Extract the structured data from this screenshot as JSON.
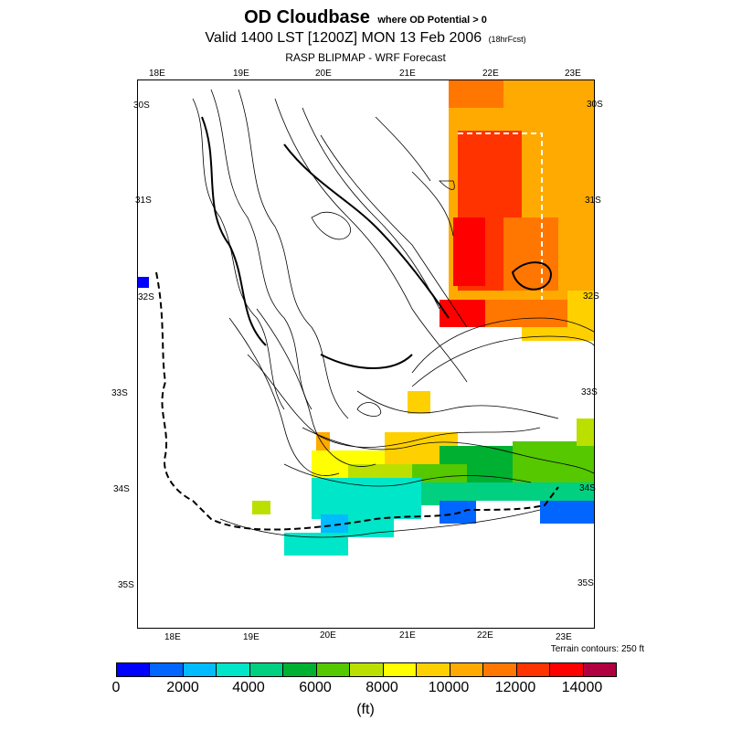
{
  "title": {
    "main": "OD Cloudbase",
    "condition": "where OD Potential > 0",
    "valid": "Valid 1400 LST [1200Z] MON 13 Feb 2006",
    "forecast_hours": "(18hrFcst)",
    "subtitle": "RASP BLIPMAP - WRF Forecast"
  },
  "map": {
    "lon_labels_top": [
      "18E",
      "19E",
      "20E",
      "21E",
      "22E",
      "23E"
    ],
    "lon_labels_bottom": [
      "18E",
      "19E",
      "20E",
      "21E",
      "22E",
      "23E"
    ],
    "lat_labels_left": [
      "30S",
      "31S",
      "32S",
      "33S",
      "34S",
      "35S"
    ],
    "lat_labels_right": [
      "30S",
      "31S",
      "32S",
      "33S",
      "34S",
      "35S"
    ],
    "terrain_note": "Terrain contours: 250 ft"
  },
  "colorbar": {
    "ticks": [
      "0",
      "2000",
      "4000",
      "6000",
      "8000",
      "10000",
      "12000",
      "14000"
    ],
    "units": "(ft)",
    "colors": [
      "#0000ff",
      "#0066ff",
      "#00bbff",
      "#00e6c8",
      "#00d080",
      "#00b030",
      "#55c800",
      "#bbe000",
      "#ffff00",
      "#ffd000",
      "#ffaa00",
      "#ff7700",
      "#ff3300",
      "#ff0000",
      "#b00040"
    ]
  }
}
